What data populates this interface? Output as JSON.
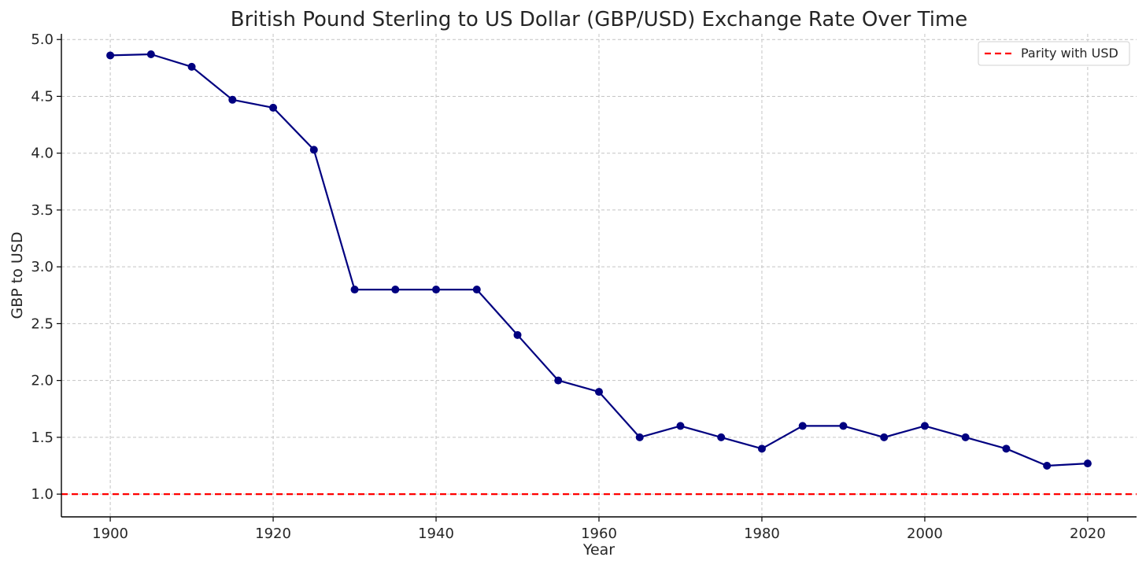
{
  "chart_data": {
    "type": "line",
    "title": "British Pound Sterling to US Dollar (GBP/USD) Exchange Rate Over Time",
    "xlabel": "Year",
    "ylabel": "GBP to USD",
    "xlim": [
      1894,
      2026
    ],
    "ylim": [
      0.8,
      5.05
    ],
    "x_ticks": [
      1900,
      1920,
      1940,
      1960,
      1980,
      2000,
      2020
    ],
    "y_ticks": [
      1.0,
      1.5,
      2.0,
      2.5,
      3.0,
      3.5,
      4.0,
      4.5,
      5.0
    ],
    "x_tick_labels": [
      "1900",
      "1920",
      "1940",
      "1960",
      "1980",
      "2000",
      "2020"
    ],
    "y_tick_labels": [
      "1.0",
      "1.5",
      "2.0",
      "2.5",
      "3.0",
      "3.5",
      "4.0",
      "4.5",
      "5.0"
    ],
    "grid": true,
    "legend_position": "top-right",
    "series": [
      {
        "x": [
          1900,
          1905,
          1910,
          1915,
          1920,
          1925,
          1930,
          1935,
          1940,
          1945,
          1950,
          1955,
          1960,
          1965,
          1970,
          1975,
          1980,
          1985,
          1990,
          1995,
          2000,
          2005,
          2010,
          2015,
          2020
        ],
        "values": [
          4.86,
          4.87,
          4.76,
          4.47,
          4.4,
          4.03,
          2.8,
          2.8,
          2.8,
          2.8,
          2.4,
          2.0,
          1.9,
          1.5,
          1.6,
          1.5,
          1.4,
          1.6,
          1.6,
          1.5,
          1.6,
          1.5,
          1.4,
          1.25,
          1.27
        ],
        "color": "#000080",
        "marker": "circle"
      }
    ],
    "reference_lines": [
      {
        "name": "Parity with USD",
        "y": 1.0,
        "color": "#ff0000",
        "style": "dashed"
      }
    ]
  }
}
